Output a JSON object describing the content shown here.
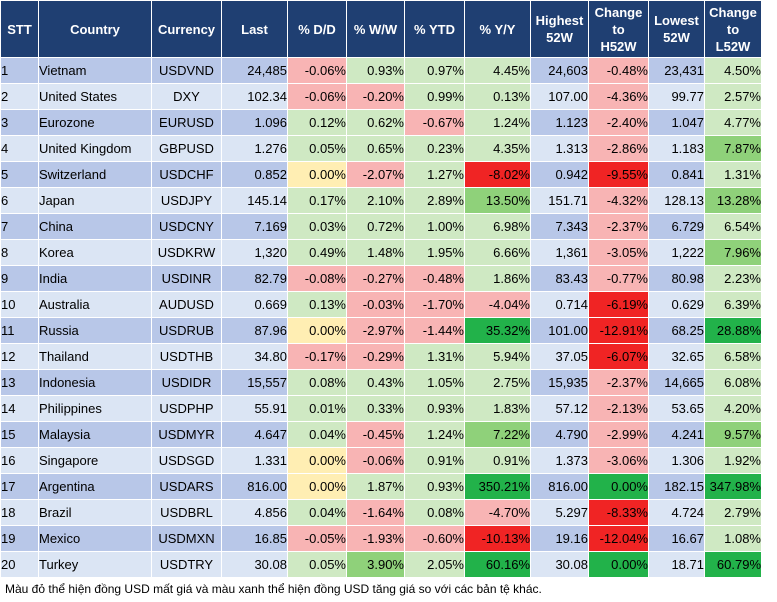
{
  "headers": [
    {
      "key": "stt",
      "label": "STT"
    },
    {
      "key": "country",
      "label": "Country"
    },
    {
      "key": "currency",
      "label": "Currency"
    },
    {
      "key": "last",
      "label": "Last"
    },
    {
      "key": "dd",
      "label": "% D/D"
    },
    {
      "key": "ww",
      "label": "% W/W"
    },
    {
      "key": "ytd",
      "label": "% YTD"
    },
    {
      "key": "yy",
      "label": "% Y/Y"
    },
    {
      "key": "high52",
      "label": "Highest\n52W"
    },
    {
      "key": "chg_h52",
      "label": "Change\nto\nH52W"
    },
    {
      "key": "low52",
      "label": "Lowest\n52W"
    },
    {
      "key": "chg_l52",
      "label": "Change\nto\nL52W"
    }
  ],
  "colors": {
    "header_bg": "#1f3f72",
    "row_odd": "#b8c7e8",
    "row_even": "#dbe5f4",
    "red_strong": "#f02424",
    "red_light": "#f8b4b4",
    "green_strong": "#22b24a",
    "green_mid": "#8fd17a",
    "green_light": "#cfe9c3",
    "yellow": "#ffeeb3"
  },
  "rows": [
    {
      "stt": "1",
      "country": "Vietnam",
      "currency": "USDVND",
      "last": "24,485",
      "dd": "-0.06%",
      "ww": "0.93%",
      "ytd": "0.97%",
      "yy": "4.45%",
      "high52": "24,603",
      "chg_h52": "-0.48%",
      "low52": "23,431",
      "chg_l52": "4.50%"
    },
    {
      "stt": "2",
      "country": "United States",
      "currency": "DXY",
      "last": "102.34",
      "dd": "-0.06%",
      "ww": "-0.20%",
      "ytd": "0.99%",
      "yy": "0.13%",
      "high52": "107.00",
      "chg_h52": "-4.36%",
      "low52": "99.77",
      "chg_l52": "2.57%"
    },
    {
      "stt": "3",
      "country": "Eurozone",
      "currency": "EURUSD",
      "last": "1.096",
      "dd": "0.12%",
      "ww": "0.62%",
      "ytd": "-0.67%",
      "yy": "1.24%",
      "high52": "1.123",
      "chg_h52": "-2.40%",
      "low52": "1.047",
      "chg_l52": "4.77%"
    },
    {
      "stt": "4",
      "country": "United Kingdom",
      "currency": "GBPUSD",
      "last": "1.276",
      "dd": "0.05%",
      "ww": "0.65%",
      "ytd": "0.23%",
      "yy": "4.35%",
      "high52": "1.313",
      "chg_h52": "-2.86%",
      "low52": "1.183",
      "chg_l52": "7.87%"
    },
    {
      "stt": "5",
      "country": "Switzerland",
      "currency": "USDCHF",
      "last": "0.852",
      "dd": "0.00%",
      "ww": "-2.07%",
      "ytd": "1.27%",
      "yy": "-8.02%",
      "high52": "0.942",
      "chg_h52": "-9.55%",
      "low52": "0.841",
      "chg_l52": "1.31%"
    },
    {
      "stt": "6",
      "country": "Japan",
      "currency": "USDJPY",
      "last": "145.14",
      "dd": "0.17%",
      "ww": "2.10%",
      "ytd": "2.89%",
      "yy": "13.50%",
      "high52": "151.71",
      "chg_h52": "-4.32%",
      "low52": "128.13",
      "chg_l52": "13.28%"
    },
    {
      "stt": "7",
      "country": "China",
      "currency": "USDCNY",
      "last": "7.169",
      "dd": "0.03%",
      "ww": "0.72%",
      "ytd": "1.00%",
      "yy": "6.98%",
      "high52": "7.343",
      "chg_h52": "-2.37%",
      "low52": "6.729",
      "chg_l52": "6.54%"
    },
    {
      "stt": "8",
      "country": "Korea",
      "currency": "USDKRW",
      "last": "1,320",
      "dd": "0.49%",
      "ww": "1.48%",
      "ytd": "1.95%",
      "yy": "6.66%",
      "high52": "1,361",
      "chg_h52": "-3.05%",
      "low52": "1,222",
      "chg_l52": "7.96%"
    },
    {
      "stt": "9",
      "country": "India",
      "currency": "USDINR",
      "last": "82.79",
      "dd": "-0.08%",
      "ww": "-0.27%",
      "ytd": "-0.48%",
      "yy": "1.86%",
      "high52": "83.43",
      "chg_h52": "-0.77%",
      "low52": "80.98",
      "chg_l52": "2.23%"
    },
    {
      "stt": "10",
      "country": "Australia",
      "currency": "AUDUSD",
      "last": "0.669",
      "dd": "0.13%",
      "ww": "-0.03%",
      "ytd": "-1.70%",
      "yy": "-4.04%",
      "high52": "0.714",
      "chg_h52": "-6.19%",
      "low52": "0.629",
      "chg_l52": "6.39%"
    },
    {
      "stt": "11",
      "country": "Russia",
      "currency": "USDRUB",
      "last": "87.96",
      "dd": "0.00%",
      "ww": "-2.97%",
      "ytd": "-1.44%",
      "yy": "35.32%",
      "high52": "101.00",
      "chg_h52": "-12.91%",
      "low52": "68.25",
      "chg_l52": "28.88%"
    },
    {
      "stt": "12",
      "country": "Thailand",
      "currency": "USDTHB",
      "last": "34.80",
      "dd": "-0.17%",
      "ww": "-0.29%",
      "ytd": "1.31%",
      "yy": "5.94%",
      "high52": "37.05",
      "chg_h52": "-6.07%",
      "low52": "32.65",
      "chg_l52": "6.58%"
    },
    {
      "stt": "13",
      "country": "Indonesia",
      "currency": "USDIDR",
      "last": "15,557",
      "dd": "0.08%",
      "ww": "0.43%",
      "ytd": "1.05%",
      "yy": "2.75%",
      "high52": "15,935",
      "chg_h52": "-2.37%",
      "low52": "14,665",
      "chg_l52": "6.08%"
    },
    {
      "stt": "14",
      "country": "Philippines",
      "currency": "USDPHP",
      "last": "55.91",
      "dd": "0.01%",
      "ww": "0.33%",
      "ytd": "0.93%",
      "yy": "1.83%",
      "high52": "57.12",
      "chg_h52": "-2.13%",
      "low52": "53.65",
      "chg_l52": "4.20%"
    },
    {
      "stt": "15",
      "country": "Malaysia",
      "currency": "USDMYR",
      "last": "4.647",
      "dd": "0.04%",
      "ww": "-0.45%",
      "ytd": "1.24%",
      "yy": "7.22%",
      "high52": "4.790",
      "chg_h52": "-2.99%",
      "low52": "4.241",
      "chg_l52": "9.57%"
    },
    {
      "stt": "16",
      "country": "Singapore",
      "currency": "USDSGD",
      "last": "1.331",
      "dd": "0.00%",
      "ww": "-0.06%",
      "ytd": "0.91%",
      "yy": "0.91%",
      "high52": "1.373",
      "chg_h52": "-3.06%",
      "low52": "1.306",
      "chg_l52": "1.92%"
    },
    {
      "stt": "17",
      "country": "Argentina",
      "currency": "USDARS",
      "last": "816.00",
      "dd": "0.00%",
      "ww": "1.87%",
      "ytd": "0.93%",
      "yy": "350.21%",
      "high52": "816.00",
      "chg_h52": "0.00%",
      "low52": "182.15",
      "chg_l52": "347.98%"
    },
    {
      "stt": "18",
      "country": "Brazil",
      "currency": "USDBRL",
      "last": "4.856",
      "dd": "0.04%",
      "ww": "-1.64%",
      "ytd": "0.08%",
      "yy": "-4.70%",
      "high52": "5.297",
      "chg_h52": "-8.33%",
      "low52": "4.724",
      "chg_l52": "2.79%"
    },
    {
      "stt": "19",
      "country": "Mexico",
      "currency": "USDMXN",
      "last": "16.85",
      "dd": "-0.05%",
      "ww": "-1.93%",
      "ytd": "-0.60%",
      "yy": "-10.13%",
      "high52": "19.16",
      "chg_h52": "-12.04%",
      "low52": "16.67",
      "chg_l52": "1.08%"
    },
    {
      "stt": "20",
      "country": "Turkey",
      "currency": "USDTRY",
      "last": "30.08",
      "dd": "0.05%",
      "ww": "3.90%",
      "ytd": "2.05%",
      "yy": "60.16%",
      "high52": "30.08",
      "chg_h52": "0.00%",
      "low52": "18.71",
      "chg_l52": "60.79%"
    }
  ],
  "note": "Màu đỏ thể hiện đồng USD mất giá và màu xanh thể hiện đồng USD tăng giá so với các bản tệ khác."
}
